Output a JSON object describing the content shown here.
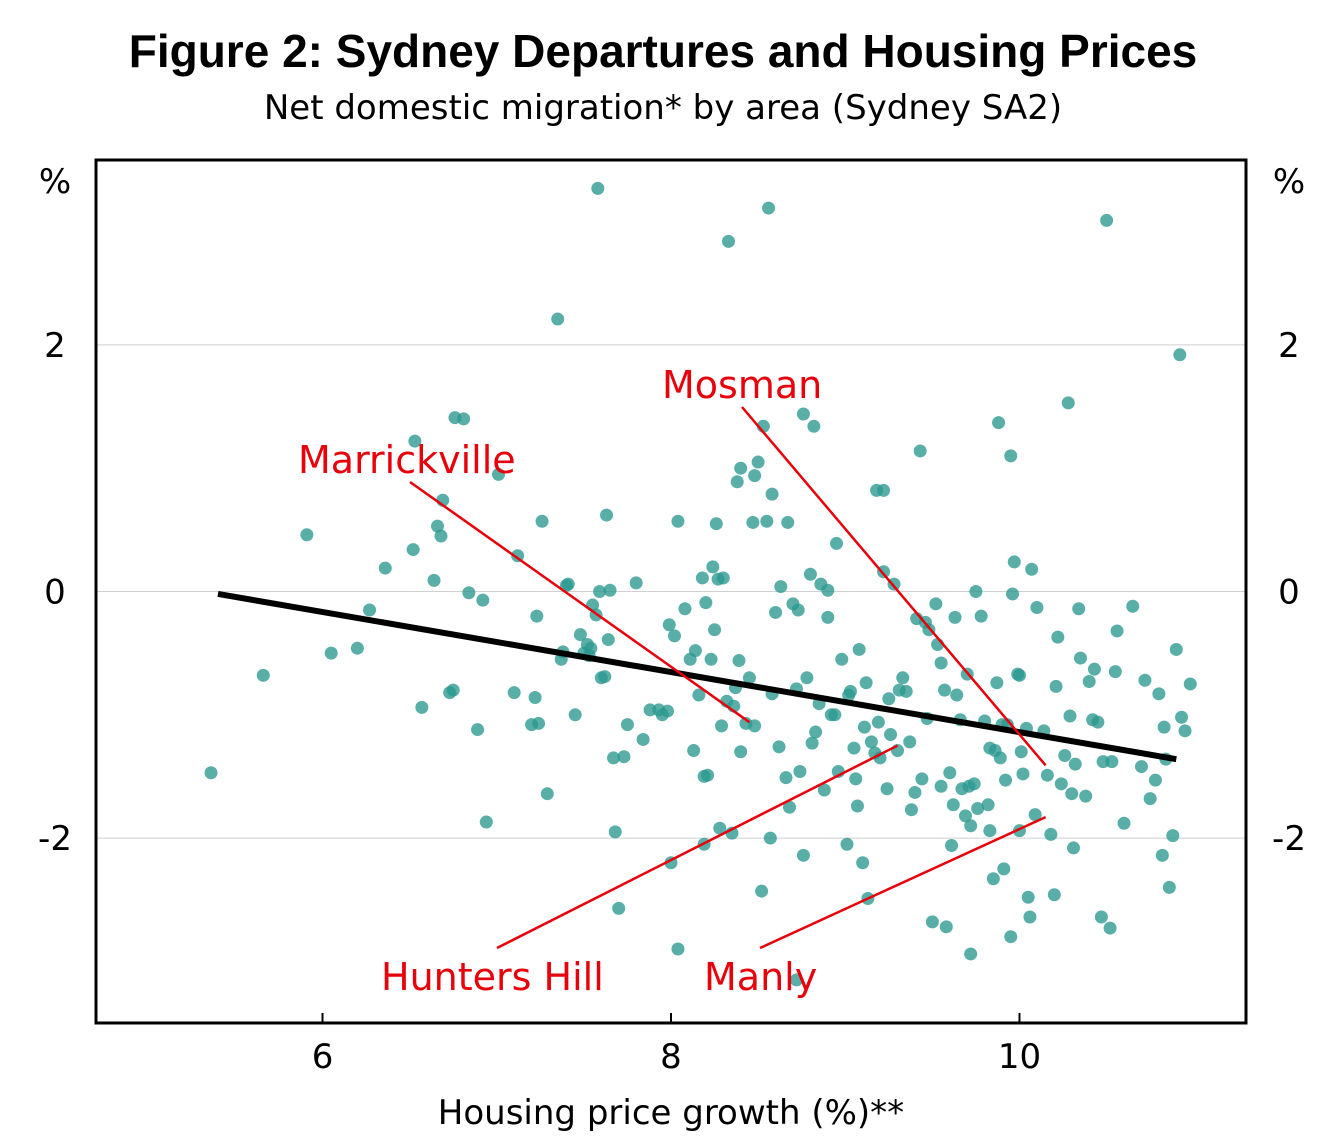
{
  "chart_data": {
    "type": "scatter",
    "title": "Figure 2: Sydney Departures and Housing Prices",
    "subtitle": "Net domestic migration* by area (Sydney SA2)",
    "xlabel": "Housing price growth (%)**",
    "ylabel_left": "%",
    "ylabel_right": "%",
    "xlim": [
      4.7,
      11.3
    ],
    "ylim": [
      -3.5,
      3.5
    ],
    "xticks": [
      6,
      8,
      10
    ],
    "xtick_labels": [
      "6",
      "8",
      "10"
    ],
    "yticks": [
      2,
      0,
      -2
    ],
    "ytick_labels": [
      "2",
      "0",
      "-2"
    ],
    "grid": "horizontal",
    "point_color": "#2a9890",
    "trend_line": {
      "x": [
        5.4,
        10.9
      ],
      "y": [
        -0.02,
        -1.36
      ],
      "color": "#000000"
    },
    "annotations": [
      {
        "label": "Marrickville",
        "point": [
          8.45,
          -1.06
        ],
        "color": "#e8000b"
      },
      {
        "label": "Mosman",
        "point": [
          10.15,
          -1.41
        ],
        "color": "#e8000b"
      },
      {
        "label": "Hunters Hill",
        "point": [
          9.3,
          -1.25
        ],
        "color": "#e8000b"
      },
      {
        "label": "Manly",
        "point": [
          10.15,
          -1.83
        ],
        "color": "#e8000b"
      }
    ],
    "points": [
      [
        5.36,
        -1.47
      ],
      [
        5.66,
        -0.68
      ],
      [
        5.91,
        0.46
      ],
      [
        6.05,
        -0.5
      ],
      [
        6.2,
        -0.46
      ],
      [
        6.27,
        -0.15
      ],
      [
        6.36,
        0.19
      ],
      [
        6.52,
        0.34
      ],
      [
        6.53,
        1.22
      ],
      [
        6.57,
        -0.94
      ],
      [
        6.64,
        0.09
      ],
      [
        6.66,
        0.53
      ],
      [
        6.68,
        0.45
      ],
      [
        6.69,
        0.74
      ],
      [
        6.76,
        1.41
      ],
      [
        6.81,
        1.4
      ],
      [
        6.75,
        -0.8
      ],
      [
        6.73,
        -0.82
      ],
      [
        6.84,
        -0.01
      ],
      [
        6.89,
        -1.12
      ],
      [
        6.92,
        -0.07
      ],
      [
        6.94,
        -1.87
      ],
      [
        7.01,
        0.95
      ],
      [
        7.1,
        -0.82
      ],
      [
        7.12,
        0.29
      ],
      [
        7.2,
        -1.08
      ],
      [
        7.22,
        -0.86
      ],
      [
        7.23,
        -0.2
      ],
      [
        7.24,
        -1.07
      ],
      [
        7.26,
        0.57
      ],
      [
        7.29,
        -1.64
      ],
      [
        7.35,
        2.21
      ],
      [
        7.37,
        -0.55
      ],
      [
        7.38,
        -0.49
      ],
      [
        7.4,
        0.05
      ],
      [
        7.41,
        0.06
      ],
      [
        7.45,
        -1.0
      ],
      [
        7.48,
        -0.35
      ],
      [
        7.5,
        -0.5
      ],
      [
        7.52,
        -0.43
      ],
      [
        7.53,
        -0.52
      ],
      [
        7.54,
        -0.46
      ],
      [
        7.55,
        -0.11
      ],
      [
        7.57,
        -0.19
      ],
      [
        7.59,
        0.0
      ],
      [
        7.6,
        -0.7
      ],
      [
        7.62,
        -0.69
      ],
      [
        7.63,
        0.62
      ],
      [
        7.64,
        -0.39
      ],
      [
        7.65,
        0.01
      ],
      [
        7.67,
        -1.35
      ],
      [
        7.68,
        -1.95
      ],
      [
        7.7,
        -2.57
      ],
      [
        7.73,
        -1.34
      ],
      [
        7.75,
        -1.08
      ],
      [
        7.8,
        0.07
      ],
      [
        7.84,
        -1.2
      ],
      [
        7.88,
        -0.96
      ],
      [
        7.93,
        -0.96
      ],
      [
        7.95,
        -1.0
      ],
      [
        7.98,
        -0.97
      ],
      [
        8.0,
        -2.2
      ],
      [
        7.99,
        -0.27
      ],
      [
        8.02,
        -0.36
      ],
      [
        8.04,
        0.57
      ],
      [
        8.04,
        -2.9
      ],
      [
        8.08,
        -0.14
      ],
      [
        8.11,
        -0.55
      ],
      [
        8.13,
        -1.29
      ],
      [
        8.14,
        -0.48
      ],
      [
        8.16,
        -0.84
      ],
      [
        8.18,
        0.11
      ],
      [
        8.19,
        -1.5
      ],
      [
        8.19,
        -2.05
      ],
      [
        8.2,
        -0.09
      ],
      [
        8.21,
        -1.49
      ],
      [
        8.23,
        -0.55
      ],
      [
        8.24,
        0.2
      ],
      [
        8.25,
        -0.31
      ],
      [
        8.26,
        0.55
      ],
      [
        8.27,
        0.1
      ],
      [
        8.28,
        -1.92
      ],
      [
        8.29,
        -1.09
      ],
      [
        8.3,
        0.11
      ],
      [
        8.32,
        -0.89
      ],
      [
        8.35,
        -1.96
      ],
      [
        8.36,
        -0.93
      ],
      [
        8.37,
        -0.78
      ],
      [
        8.38,
        0.89
      ],
      [
        8.39,
        -0.56
      ],
      [
        8.4,
        1.0
      ],
      [
        8.4,
        -1.3
      ],
      [
        8.43,
        -1.07
      ],
      [
        8.45,
        -0.7
      ],
      [
        8.47,
        0.56
      ],
      [
        8.48,
        -1.09
      ],
      [
        8.48,
        0.94
      ],
      [
        8.5,
        1.05
      ],
      [
        8.52,
        -2.43
      ],
      [
        8.53,
        1.34
      ],
      [
        8.55,
        0.57
      ],
      [
        8.57,
        -2.0
      ],
      [
        8.58,
        0.79
      ],
      [
        8.58,
        -0.83
      ],
      [
        8.6,
        -0.17
      ],
      [
        8.62,
        -1.26
      ],
      [
        8.63,
        0.04
      ],
      [
        8.66,
        -1.51
      ],
      [
        8.67,
        0.56
      ],
      [
        8.68,
        -1.75
      ],
      [
        8.7,
        -0.1
      ],
      [
        8.72,
        -3.15
      ],
      [
        8.72,
        -0.79
      ],
      [
        8.73,
        -0.15
      ],
      [
        8.74,
        -1.46
      ],
      [
        8.76,
        -2.14
      ],
      [
        8.76,
        1.44
      ],
      [
        8.78,
        -0.7
      ],
      [
        8.8,
        0.14
      ],
      [
        8.81,
        -1.23
      ],
      [
        8.82,
        1.34
      ],
      [
        8.83,
        -1.14
      ],
      [
        8.85,
        -0.91
      ],
      [
        8.86,
        0.06
      ],
      [
        8.88,
        -1.61
      ],
      [
        8.9,
        -0.21
      ],
      [
        8.9,
        0.01
      ],
      [
        8.92,
        -1.0
      ],
      [
        8.94,
        -1.0
      ],
      [
        8.95,
        0.39
      ],
      [
        8.96,
        -1.46
      ],
      [
        8.98,
        -0.55
      ],
      [
        9.01,
        -2.05
      ],
      [
        9.02,
        -0.84
      ],
      [
        9.03,
        -0.81
      ],
      [
        9.05,
        -1.27
      ],
      [
        9.06,
        -1.52
      ],
      [
        9.07,
        -1.74
      ],
      [
        9.08,
        -0.47
      ],
      [
        9.1,
        -2.2
      ],
      [
        9.11,
        -1.1
      ],
      [
        9.12,
        -0.74
      ],
      [
        9.13,
        -2.49
      ],
      [
        9.15,
        -1.22
      ],
      [
        9.17,
        -1.31
      ],
      [
        9.18,
        0.82
      ],
      [
        9.19,
        -1.06
      ],
      [
        9.2,
        -1.35
      ],
      [
        9.22,
        0.16
      ],
      [
        9.24,
        -1.6
      ],
      [
        9.25,
        -0.87
      ],
      [
        9.26,
        -1.16
      ],
      [
        9.28,
        0.06
      ],
      [
        9.3,
        -1.29
      ],
      [
        9.31,
        -0.8
      ],
      [
        9.33,
        -0.7
      ],
      [
        9.35,
        -0.81
      ],
      [
        9.37,
        -1.22
      ],
      [
        9.38,
        -1.77
      ],
      [
        9.4,
        -1.63
      ],
      [
        9.41,
        -0.22
      ],
      [
        9.43,
        1.14
      ],
      [
        9.44,
        -1.52
      ],
      [
        9.46,
        -0.25
      ],
      [
        9.47,
        -1.03
      ],
      [
        9.48,
        -0.31
      ],
      [
        9.5,
        -2.68
      ],
      [
        9.52,
        -0.1
      ],
      [
        9.53,
        -0.43
      ],
      [
        9.55,
        -0.58
      ],
      [
        9.55,
        -1.58
      ],
      [
        9.57,
        -0.8
      ],
      [
        9.58,
        -2.72
      ],
      [
        9.6,
        -1.47
      ],
      [
        9.61,
        -2.06
      ],
      [
        9.62,
        -1.73
      ],
      [
        9.63,
        -0.21
      ],
      [
        9.64,
        -0.84
      ],
      [
        9.66,
        -1.04
      ],
      [
        9.67,
        -1.6
      ],
      [
        9.69,
        -1.82
      ],
      [
        9.7,
        -0.67
      ],
      [
        9.71,
        -1.58
      ],
      [
        9.72,
        -1.9
      ],
      [
        9.72,
        -2.94
      ],
      [
        9.74,
        -1.56
      ],
      [
        9.75,
        0.0
      ],
      [
        9.76,
        -1.76
      ],
      [
        9.78,
        -0.2
      ],
      [
        9.8,
        -1.05
      ],
      [
        9.82,
        -1.73
      ],
      [
        9.83,
        -1.27
      ],
      [
        9.83,
        -1.94
      ],
      [
        9.85,
        -2.33
      ],
      [
        9.86,
        -1.29
      ],
      [
        9.87,
        -0.74
      ],
      [
        9.88,
        1.37
      ],
      [
        9.89,
        -1.35
      ],
      [
        9.9,
        -1.08
      ],
      [
        9.91,
        -2.25
      ],
      [
        9.92,
        -1.53
      ],
      [
        9.93,
        -1.08
      ],
      [
        9.95,
        -2.8
      ],
      [
        9.95,
        1.1
      ],
      [
        9.96,
        -0.02
      ],
      [
        9.97,
        0.24
      ],
      [
        9.99,
        -0.67
      ],
      [
        10.0,
        -0.68
      ],
      [
        10.0,
        -1.94
      ],
      [
        10.01,
        -1.3
      ],
      [
        10.02,
        -1.48
      ],
      [
        10.04,
        -1.11
      ],
      [
        10.05,
        -2.48
      ],
      [
        10.06,
        -2.64
      ],
      [
        10.07,
        0.18
      ],
      [
        10.09,
        -1.81
      ],
      [
        10.1,
        -0.13
      ],
      [
        10.14,
        -1.13
      ],
      [
        10.16,
        -1.49
      ],
      [
        10.18,
        -1.97
      ],
      [
        10.2,
        -2.46
      ],
      [
        10.21,
        -0.77
      ],
      [
        10.22,
        -0.37
      ],
      [
        10.24,
        -1.56
      ],
      [
        10.26,
        -1.33
      ],
      [
        10.28,
        1.53
      ],
      [
        10.29,
        -1.01
      ],
      [
        10.3,
        -1.64
      ],
      [
        10.31,
        -2.08
      ],
      [
        10.32,
        -1.4
      ],
      [
        10.34,
        -0.14
      ],
      [
        10.35,
        -0.54
      ],
      [
        10.38,
        -1.66
      ],
      [
        10.4,
        -0.73
      ],
      [
        10.42,
        -1.04
      ],
      [
        10.43,
        -0.63
      ],
      [
        10.45,
        -1.06
      ],
      [
        10.47,
        -2.64
      ],
      [
        10.48,
        -1.38
      ],
      [
        10.5,
        3.01
      ],
      [
        10.52,
        -2.73
      ],
      [
        10.53,
        -1.38
      ],
      [
        10.55,
        -0.65
      ],
      [
        10.56,
        -0.32
      ],
      [
        10.6,
        -1.88
      ],
      [
        10.65,
        -0.12
      ],
      [
        10.7,
        -1.42
      ],
      [
        10.72,
        -0.72
      ],
      [
        10.75,
        -1.68
      ],
      [
        10.78,
        -1.53
      ],
      [
        10.8,
        -0.83
      ],
      [
        10.82,
        -2.14
      ],
      [
        10.83,
        -1.1
      ],
      [
        10.84,
        -1.36
      ],
      [
        10.86,
        -2.4
      ],
      [
        10.88,
        -1.98
      ],
      [
        10.9,
        -0.47
      ],
      [
        10.92,
        1.92
      ],
      [
        10.93,
        -1.02
      ],
      [
        10.95,
        -1.13
      ],
      [
        10.98,
        -0.75
      ],
      [
        7.58,
        3.27
      ],
      [
        8.33,
        2.84
      ],
      [
        8.56,
        3.11
      ],
      [
        9.22,
        0.82
      ]
    ]
  }
}
